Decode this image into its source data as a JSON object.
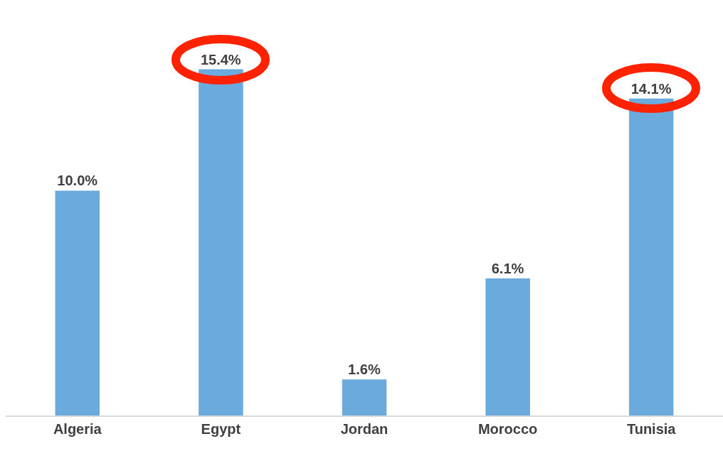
{
  "chart_data": {
    "type": "bar",
    "categories": [
      "Algeria",
      "Egypt",
      "Jordan",
      "Morocco",
      "Tunisia"
    ],
    "values": [
      10.0,
      15.4,
      1.6,
      6.1,
      14.1
    ],
    "color": "#6aaadc",
    "value_labels": [
      "10.0%",
      "15.4%",
      "1.6%",
      "6.1%",
      "14.1%"
    ],
    "grid": false,
    "legend": false
  }
}
